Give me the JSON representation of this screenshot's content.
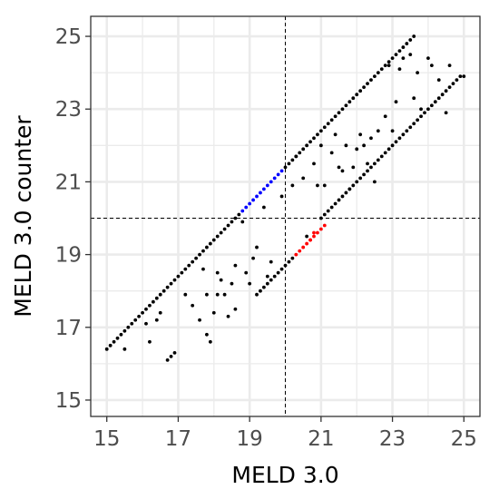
{
  "chart_data": {
    "type": "scatter",
    "xlabel": "MELD 3.0",
    "ylabel": "MELD 3.0 counter",
    "xlim": [
      14.55,
      25.45
    ],
    "ylim": [
      14.55,
      25.55
    ],
    "xticks": [
      15,
      17,
      19,
      21,
      23,
      25
    ],
    "xtick_labels": [
      "15",
      "17",
      "19",
      "21",
      "23",
      "25"
    ],
    "yticks": [
      15,
      17,
      19,
      21,
      23,
      25
    ],
    "ytick_labels": [
      "15",
      "17",
      "19",
      "21",
      "23",
      "25"
    ],
    "minor_gridlines": [
      16,
      18,
      20,
      22,
      24
    ],
    "grid": true,
    "reference_lines": {
      "vertical_x": 20,
      "horizontal_y": 20,
      "style": "dashed"
    },
    "colors": {
      "black": "#000000",
      "blue": "#0000ff",
      "red": "#ff0000",
      "grid": "#ebebeb",
      "panel_border": "#333333"
    },
    "series": [
      {
        "color": "black",
        "points": [
          [
            15.0,
            16.4
          ],
          [
            15.1,
            16.5
          ],
          [
            15.2,
            16.6
          ],
          [
            15.3,
            16.7
          ],
          [
            15.4,
            16.8
          ],
          [
            15.5,
            16.9
          ],
          [
            15.6,
            17.0
          ],
          [
            15.7,
            17.1
          ],
          [
            15.8,
            17.2
          ],
          [
            15.9,
            17.3
          ],
          [
            16.0,
            17.4
          ],
          [
            16.1,
            17.5
          ],
          [
            16.2,
            17.6
          ],
          [
            16.3,
            17.7
          ],
          [
            16.4,
            17.8
          ],
          [
            16.5,
            17.9
          ],
          [
            16.6,
            18.0
          ],
          [
            16.7,
            18.1
          ],
          [
            16.8,
            18.2
          ],
          [
            16.9,
            18.3
          ],
          [
            17.0,
            18.4
          ],
          [
            17.1,
            18.5
          ],
          [
            17.2,
            18.6
          ],
          [
            17.3,
            18.7
          ],
          [
            17.4,
            18.8
          ],
          [
            17.5,
            18.9
          ],
          [
            17.6,
            19.0
          ],
          [
            17.7,
            19.1
          ],
          [
            17.8,
            19.2
          ],
          [
            17.9,
            19.3
          ],
          [
            18.0,
            19.4
          ],
          [
            18.1,
            19.5
          ],
          [
            18.2,
            19.6
          ],
          [
            18.3,
            19.7
          ],
          [
            18.4,
            19.8
          ],
          [
            18.5,
            19.9
          ],
          [
            18.6,
            20.0
          ],
          [
            18.7,
            20.1
          ],
          [
            20.0,
            21.4
          ],
          [
            20.1,
            21.5
          ],
          [
            20.2,
            21.6
          ],
          [
            20.3,
            21.7
          ],
          [
            20.4,
            21.8
          ],
          [
            20.5,
            21.9
          ],
          [
            20.6,
            22.0
          ],
          [
            20.7,
            22.1
          ],
          [
            20.8,
            22.2
          ],
          [
            20.9,
            22.3
          ],
          [
            21.0,
            22.4
          ],
          [
            21.1,
            22.5
          ],
          [
            21.2,
            22.6
          ],
          [
            21.3,
            22.7
          ],
          [
            21.4,
            22.8
          ],
          [
            21.5,
            22.9
          ],
          [
            21.6,
            23.0
          ],
          [
            21.7,
            23.1
          ],
          [
            21.8,
            23.2
          ],
          [
            21.9,
            23.3
          ],
          [
            22.0,
            23.4
          ],
          [
            22.1,
            23.5
          ],
          [
            22.2,
            23.6
          ],
          [
            22.3,
            23.7
          ],
          [
            22.4,
            23.8
          ],
          [
            22.5,
            23.9
          ],
          [
            22.6,
            24.0
          ],
          [
            22.7,
            24.1
          ],
          [
            22.8,
            24.2
          ],
          [
            22.9,
            24.3
          ],
          [
            23.0,
            24.4
          ],
          [
            23.1,
            24.5
          ],
          [
            23.2,
            24.6
          ],
          [
            23.3,
            24.7
          ],
          [
            23.4,
            24.8
          ],
          [
            23.5,
            24.9
          ],
          [
            23.6,
            25.0
          ],
          [
            19.2,
            17.9
          ],
          [
            19.3,
            18.0
          ],
          [
            19.4,
            18.1
          ],
          [
            19.5,
            18.2
          ],
          [
            19.6,
            18.3
          ],
          [
            19.7,
            18.4
          ],
          [
            19.8,
            18.5
          ],
          [
            19.9,
            18.6
          ],
          [
            20.0,
            18.7
          ],
          [
            20.1,
            18.8
          ],
          [
            20.2,
            18.9
          ],
          [
            21.0,
            20.0
          ],
          [
            21.1,
            20.1
          ],
          [
            21.2,
            20.2
          ],
          [
            21.3,
            20.3
          ],
          [
            21.4,
            20.4
          ],
          [
            21.5,
            20.5
          ],
          [
            21.6,
            20.6
          ],
          [
            21.7,
            20.7
          ],
          [
            21.8,
            20.8
          ],
          [
            21.9,
            20.9
          ],
          [
            22.0,
            21.0
          ],
          [
            22.1,
            21.1
          ],
          [
            22.2,
            21.2
          ],
          [
            22.3,
            21.3
          ],
          [
            22.4,
            21.4
          ],
          [
            22.5,
            21.5
          ],
          [
            22.6,
            21.6
          ],
          [
            22.7,
            21.7
          ],
          [
            22.8,
            21.8
          ],
          [
            22.9,
            21.9
          ],
          [
            23.0,
            22.0
          ],
          [
            23.1,
            22.1
          ],
          [
            23.2,
            22.2
          ],
          [
            23.3,
            22.3
          ],
          [
            23.4,
            22.4
          ],
          [
            23.5,
            22.5
          ],
          [
            23.6,
            22.6
          ],
          [
            23.7,
            22.7
          ],
          [
            23.8,
            22.8
          ],
          [
            23.9,
            22.9
          ],
          [
            24.0,
            23.0
          ],
          [
            24.1,
            23.1
          ],
          [
            24.2,
            23.2
          ],
          [
            24.3,
            23.3
          ],
          [
            24.4,
            23.4
          ],
          [
            24.5,
            23.5
          ],
          [
            24.6,
            23.6
          ],
          [
            24.7,
            23.7
          ],
          [
            24.8,
            23.8
          ],
          [
            24.9,
            23.9
          ],
          [
            25.0,
            23.9
          ],
          [
            15.5,
            16.4
          ],
          [
            16.1,
            17.1
          ],
          [
            16.2,
            16.6
          ],
          [
            16.4,
            17.2
          ],
          [
            16.5,
            17.4
          ],
          [
            16.7,
            16.1
          ],
          [
            16.8,
            16.2
          ],
          [
            16.9,
            16.3
          ],
          [
            17.2,
            17.9
          ],
          [
            17.4,
            17.6
          ],
          [
            17.6,
            17.2
          ],
          [
            17.7,
            18.6
          ],
          [
            17.8,
            17.9
          ],
          [
            17.8,
            16.8
          ],
          [
            17.9,
            16.6
          ],
          [
            18.0,
            17.4
          ],
          [
            18.1,
            17.9
          ],
          [
            18.1,
            18.5
          ],
          [
            18.2,
            18.3
          ],
          [
            18.3,
            17.9
          ],
          [
            18.4,
            17.3
          ],
          [
            18.5,
            18.2
          ],
          [
            18.6,
            18.7
          ],
          [
            18.6,
            17.5
          ],
          [
            18.8,
            19.9
          ],
          [
            18.9,
            18.5
          ],
          [
            19.0,
            18.2
          ],
          [
            19.1,
            18.9
          ],
          [
            19.2,
            19.2
          ],
          [
            19.4,
            20.3
          ],
          [
            19.5,
            18.4
          ],
          [
            19.6,
            18.8
          ],
          [
            19.9,
            20.6
          ],
          [
            20.2,
            20.9
          ],
          [
            20.3,
            21.7
          ],
          [
            20.5,
            21.1
          ],
          [
            20.6,
            19.5
          ],
          [
            20.8,
            21.5
          ],
          [
            20.9,
            20.9
          ],
          [
            21.0,
            22.0
          ],
          [
            21.1,
            20.9
          ],
          [
            21.3,
            21.8
          ],
          [
            21.4,
            22.3
          ],
          [
            21.5,
            21.4
          ],
          [
            21.6,
            21.3
          ],
          [
            21.7,
            22.0
          ],
          [
            21.8,
            20.8
          ],
          [
            21.9,
            21.4
          ],
          [
            22.0,
            21.9
          ],
          [
            22.1,
            22.3
          ],
          [
            22.2,
            22.0
          ],
          [
            22.3,
            21.5
          ],
          [
            22.4,
            22.2
          ],
          [
            22.5,
            21.0
          ],
          [
            22.6,
            22.4
          ],
          [
            22.8,
            22.8
          ],
          [
            22.9,
            24.2
          ],
          [
            23.0,
            22.4
          ],
          [
            23.1,
            23.2
          ],
          [
            23.2,
            24.1
          ],
          [
            23.3,
            24.4
          ],
          [
            23.5,
            24.5
          ],
          [
            23.6,
            23.3
          ],
          [
            23.7,
            24.0
          ],
          [
            23.8,
            23.0
          ],
          [
            24.0,
            24.4
          ],
          [
            24.1,
            24.2
          ],
          [
            24.3,
            23.8
          ],
          [
            24.5,
            22.9
          ],
          [
            24.6,
            24.2
          ]
        ]
      },
      {
        "color": "blue",
        "points": [
          [
            18.8,
            20.2
          ],
          [
            18.9,
            20.3
          ],
          [
            19.0,
            20.4
          ],
          [
            19.1,
            20.5
          ],
          [
            19.2,
            20.6
          ],
          [
            19.3,
            20.7
          ],
          [
            19.4,
            20.8
          ],
          [
            19.5,
            20.9
          ],
          [
            19.6,
            21.0
          ],
          [
            19.7,
            21.1
          ],
          [
            19.8,
            21.2
          ],
          [
            19.9,
            21.3
          ]
        ]
      },
      {
        "color": "red",
        "points": [
          [
            20.3,
            19.0
          ],
          [
            20.4,
            19.1
          ],
          [
            20.5,
            19.2
          ],
          [
            20.6,
            19.3
          ],
          [
            20.7,
            19.4
          ],
          [
            20.8,
            19.5
          ],
          [
            20.9,
            19.6
          ],
          [
            21.0,
            19.7
          ],
          [
            21.1,
            19.8
          ],
          [
            20.7,
            19.4
          ],
          [
            20.8,
            19.6
          ]
        ]
      }
    ]
  }
}
